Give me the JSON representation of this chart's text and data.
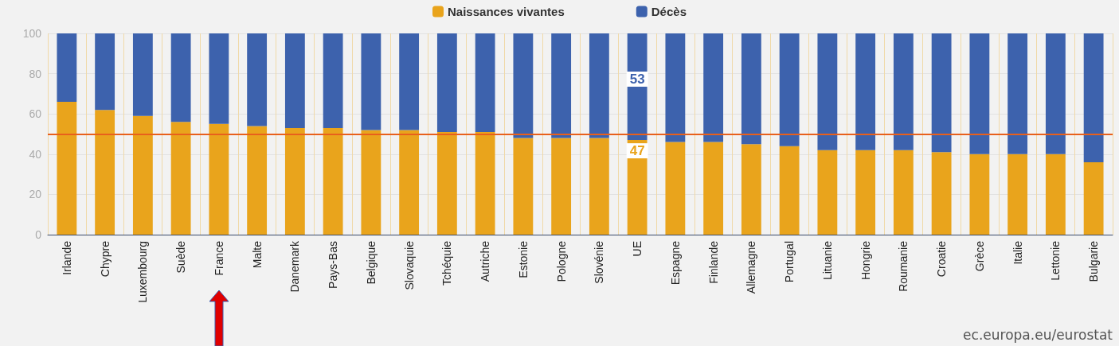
{
  "chart_data": {
    "type": "bar",
    "stacked": true,
    "categories": [
      "Irlande",
      "Chypre",
      "Luxembourg",
      "Suède",
      "France",
      "Malte",
      "Danemark",
      "Pays-Bas",
      "Belgique",
      "Slovaquie",
      "Tchéquie",
      "Autriche",
      "Estonie",
      "Pologne",
      "Slovénie",
      "UE",
      "Espagne",
      "Finlande",
      "Allemagne",
      "Portugal",
      "Lituanie",
      "Hongrie",
      "Roumanie",
      "Croatie",
      "Grèce",
      "Italie",
      "Lettonie",
      "Bulgarie"
    ],
    "series": [
      {
        "name": "Naissances vivantes",
        "color": "#e9a41c",
        "values": [
          66,
          62,
          59,
          56,
          55,
          54,
          53,
          53,
          52,
          52,
          51,
          51,
          48,
          48,
          48,
          47,
          46,
          46,
          45,
          44,
          42,
          42,
          42,
          41,
          40,
          40,
          40,
          36
        ],
        "value_labels": [
          null,
          null,
          null,
          null,
          null,
          null,
          null,
          null,
          null,
          null,
          null,
          null,
          null,
          null,
          null,
          "47",
          null,
          null,
          null,
          null,
          null,
          null,
          null,
          null,
          null,
          null,
          null,
          null
        ]
      },
      {
        "name": "Décès",
        "color": "#3d62ad",
        "values": [
          34,
          38,
          41,
          44,
          45,
          46,
          47,
          47,
          48,
          48,
          49,
          49,
          52,
          52,
          52,
          53,
          54,
          54,
          55,
          56,
          58,
          58,
          58,
          59,
          60,
          60,
          60,
          64
        ],
        "value_labels": [
          null,
          null,
          null,
          null,
          null,
          null,
          null,
          null,
          null,
          null,
          null,
          null,
          null,
          null,
          null,
          "53",
          null,
          null,
          null,
          null,
          null,
          null,
          null,
          null,
          null,
          null,
          null,
          null
        ]
      }
    ],
    "ylim": [
      0,
      100
    ],
    "yticks": [
      0,
      20,
      40,
      60,
      80,
      100
    ],
    "grid": true,
    "legend": "top",
    "ref_lines": [
      {
        "axis": "y",
        "value": 50,
        "color": "#e8601c"
      }
    ],
    "annotations": [
      "ec.europa.eu/eurostat"
    ]
  }
}
